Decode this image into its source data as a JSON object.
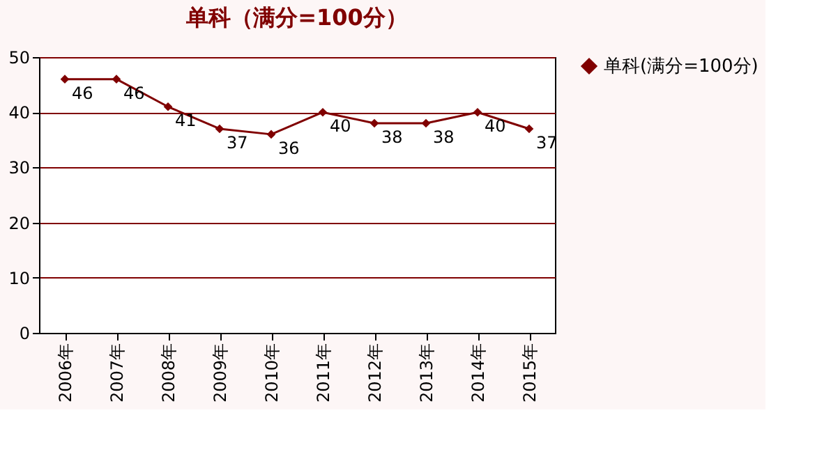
{
  "chart_data": {
    "type": "line",
    "title": "单科（满分=100分）",
    "categories": [
      "2006年",
      "2007年",
      "2008年",
      "2009年",
      "2010年",
      "2011年",
      "2012年",
      "2013年",
      "2014年",
      "2015年"
    ],
    "series": [
      {
        "name": "单科(满分=100分)",
        "color": "#800000",
        "values": [
          46,
          46,
          41,
          37,
          36,
          40,
          38,
          38,
          40,
          37
        ]
      }
    ],
    "ylim": [
      0,
      50
    ],
    "yticks": [
      0,
      10,
      20,
      30,
      40,
      50
    ],
    "grid": "y",
    "legend": "right",
    "marker": "diamond",
    "line_style": "solid",
    "data_labels": true
  }
}
